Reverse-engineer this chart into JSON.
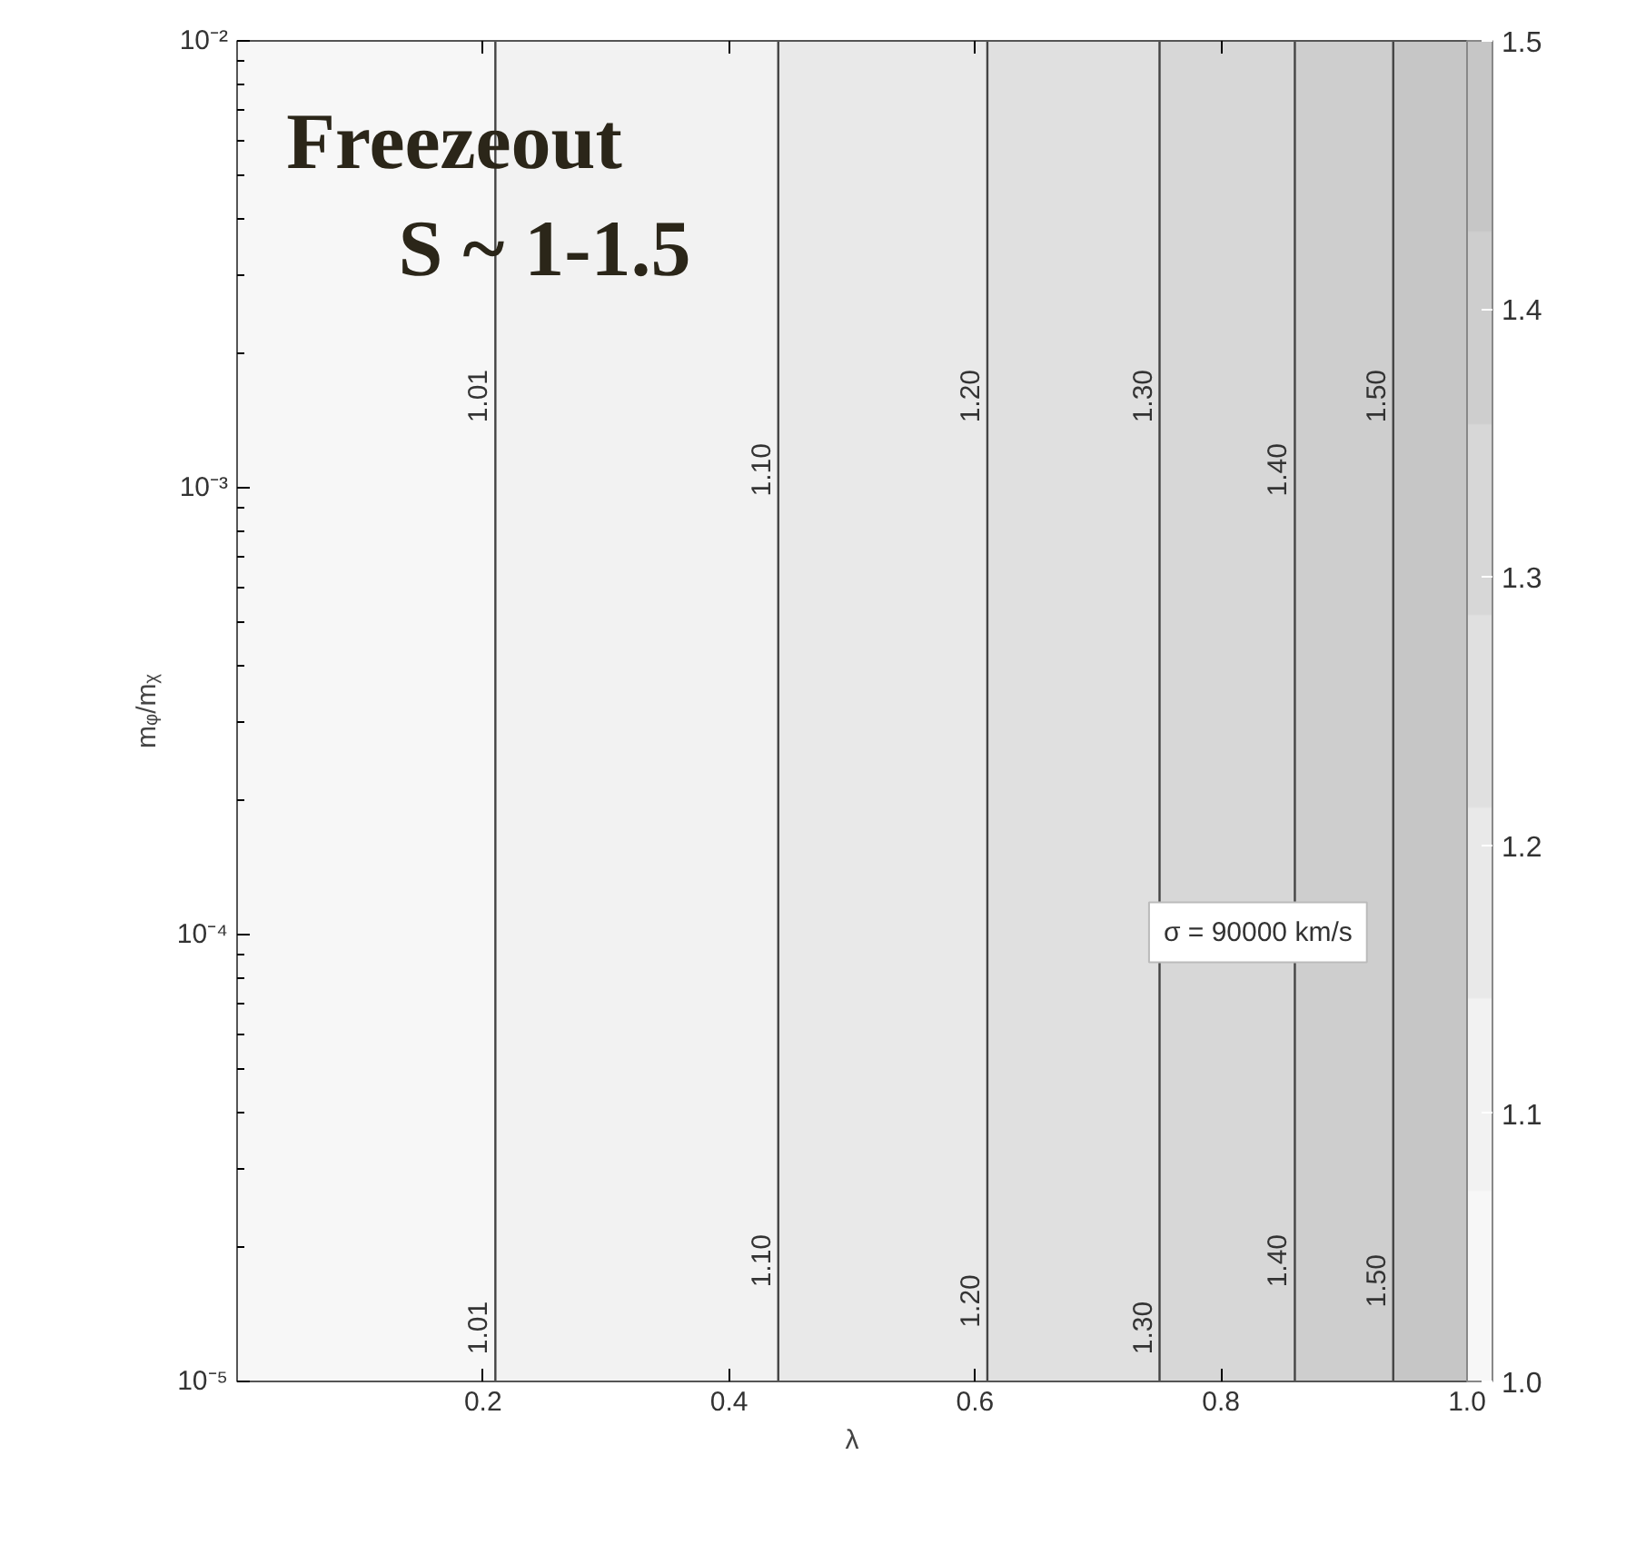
{
  "chart_data": {
    "type": "line",
    "xlabel": "λ",
    "ylabel": "mᵩ/mᵪ",
    "log": "y",
    "marker": "none",
    "line_style": "solid",
    "xlim": [
      0.0,
      1.0
    ],
    "xticks": [
      0.2,
      0.4,
      0.6,
      0.8,
      {
        "value": 1.0,
        "label": "1.0"
      }
    ],
    "ylim": [
      1e-05,
      0.01
    ],
    "yticks": [
      {
        "value": 1e-05,
        "label": "10⁻⁵"
      },
      {
        "value": 0.0001,
        "label": "10⁻⁴"
      },
      {
        "value": 0.001,
        "label": "10⁻³"
      },
      {
        "value": 0.01,
        "label": "10⁻²"
      }
    ],
    "series": [
      {
        "name": "1.01",
        "color": "#444444",
        "x": [
          0.21,
          0.21
        ],
        "values": [
          1e-05,
          0.01
        ]
      },
      {
        "name": "1.10",
        "color": "#444444",
        "x": [
          0.44,
          0.44
        ],
        "values": [
          1e-05,
          0.01
        ]
      },
      {
        "name": "1.20",
        "color": "#444444",
        "x": [
          0.61,
          0.61
        ],
        "values": [
          1e-05,
          0.01
        ]
      },
      {
        "name": "1.30",
        "color": "#444444",
        "x": [
          0.75,
          0.75
        ],
        "values": [
          1e-05,
          0.01
        ]
      },
      {
        "name": "1.40",
        "color": "#444444",
        "x": [
          0.86,
          0.86
        ],
        "values": [
          1e-05,
          0.01
        ]
      },
      {
        "name": "1.50",
        "color": "#444444",
        "x": [
          0.94,
          0.94
        ],
        "values": [
          1e-05,
          0.01
        ]
      }
    ],
    "bands": [
      {
        "axis": "x",
        "from": 0.0,
        "to": 0.21,
        "color": "#f7f7f7"
      },
      {
        "axis": "x",
        "from": 0.21,
        "to": 0.44,
        "color": "#f2f2f2"
      },
      {
        "axis": "x",
        "from": 0.44,
        "to": 0.61,
        "color": "#e9e9e9"
      },
      {
        "axis": "x",
        "from": 0.61,
        "to": 0.75,
        "color": "#e0e0e0"
      },
      {
        "axis": "x",
        "from": 0.75,
        "to": 0.86,
        "color": "#d7d7d7"
      },
      {
        "axis": "x",
        "from": 0.86,
        "to": 0.94,
        "color": "#cecece"
      },
      {
        "axis": "x",
        "from": 0.94,
        "to": 1.0,
        "color": "#c6c6c6"
      }
    ],
    "clim": [
      1.0,
      1.5
    ],
    "cticks": [
      {
        "value": 1.0,
        "label": "1.0"
      },
      1.1,
      1.2,
      1.3,
      1.4,
      1.5
    ],
    "annotations": [
      "Freezeout",
      "S ~ 1-1.5",
      "σ = 90000 km/s"
    ]
  }
}
